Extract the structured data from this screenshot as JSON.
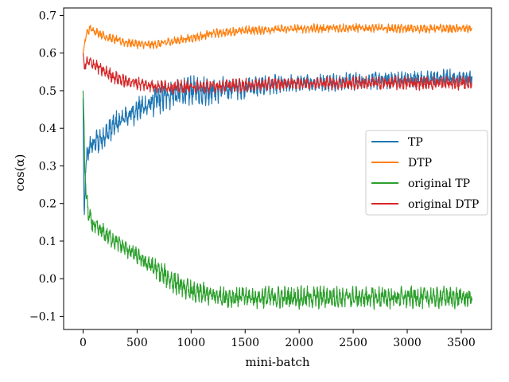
{
  "chart_data": {
    "type": "line",
    "title": "",
    "xlabel": "mini-batch",
    "ylabel": "cos(α)",
    "xlim": [
      -180,
      3780
    ],
    "ylim": [
      -0.135,
      0.72
    ],
    "x_ticks": [
      0,
      500,
      1000,
      1500,
      2000,
      2500,
      3000,
      3500
    ],
    "x_tick_labels": [
      "0",
      "500",
      "1000",
      "1500",
      "2000",
      "2500",
      "3000",
      "3500"
    ],
    "y_ticks": [
      -0.1,
      0.0,
      0.1,
      0.2,
      0.3,
      0.4,
      0.5,
      0.6,
      0.7
    ],
    "y_tick_labels": [
      "−0.1",
      "0.0",
      "0.1",
      "0.2",
      "0.3",
      "0.4",
      "0.5",
      "0.6",
      "0.7"
    ],
    "grid": false,
    "legend_position": "center-right",
    "series": [
      {
        "name": "TP",
        "color": "#1f77b4",
        "x": [
          0,
          10,
          20,
          40,
          60,
          100,
          150,
          200,
          300,
          400,
          500,
          600,
          700,
          800,
          1000,
          1200,
          1500,
          2000,
          2500,
          3000,
          3600
        ],
        "y": [
          0.48,
          0.12,
          0.28,
          0.33,
          0.35,
          0.36,
          0.37,
          0.38,
          0.41,
          0.43,
          0.45,
          0.46,
          0.48,
          0.49,
          0.5,
          0.5,
          0.51,
          0.52,
          0.525,
          0.53,
          0.535
        ],
        "noise": [
          0,
          0.03,
          0.03,
          0.03,
          0.03,
          0.03,
          0.03,
          0.03,
          0.03,
          0.03,
          0.03,
          0.03,
          0.035,
          0.035,
          0.035,
          0.03,
          0.025,
          0.02,
          0.02,
          0.02,
          0.02
        ]
      },
      {
        "name": "DTP",
        "color": "#ff7f0e",
        "x": [
          0,
          10,
          20,
          40,
          60,
          100,
          200,
          300,
          400,
          500,
          600,
          700,
          800,
          1000,
          1200,
          1500,
          2000,
          2500,
          3000,
          3600
        ],
        "y": [
          0.6,
          0.61,
          0.64,
          0.655,
          0.665,
          0.66,
          0.645,
          0.635,
          0.628,
          0.624,
          0.622,
          0.624,
          0.63,
          0.64,
          0.652,
          0.66,
          0.665,
          0.667,
          0.665,
          0.665
        ],
        "noise": [
          0,
          0.01,
          0.01,
          0.01,
          0.01,
          0.01,
          0.01,
          0.01,
          0.01,
          0.01,
          0.01,
          0.01,
          0.01,
          0.01,
          0.01,
          0.01,
          0.01,
          0.01,
          0.01,
          0.01
        ]
      },
      {
        "name": "original TP",
        "color": "#2ca02c",
        "x": [
          0,
          5,
          15,
          30,
          50,
          80,
          100,
          200,
          300,
          400,
          500,
          600,
          700,
          800,
          900,
          1000,
          1200,
          1500,
          2000,
          2500,
          3000,
          3600
        ],
        "y": [
          0.5,
          0.45,
          0.3,
          0.22,
          0.17,
          0.15,
          0.14,
          0.12,
          0.1,
          0.08,
          0.06,
          0.04,
          0.02,
          0.0,
          -0.02,
          -0.035,
          -0.045,
          -0.05,
          -0.05,
          -0.05,
          -0.05,
          -0.05
        ],
        "noise": [
          0,
          0.02,
          0.02,
          0.02,
          0.02,
          0.02,
          0.02,
          0.02,
          0.02,
          0.02,
          0.02,
          0.025,
          0.025,
          0.025,
          0.025,
          0.025,
          0.025,
          0.025,
          0.025,
          0.025,
          0.025,
          0.025
        ]
      },
      {
        "name": "original DTP",
        "color": "#d62728",
        "x": [
          0,
          10,
          20,
          40,
          60,
          100,
          200,
          300,
          400,
          500,
          600,
          800,
          1000,
          1500,
          2000,
          2500,
          3000,
          3600
        ],
        "y": [
          0.6,
          0.56,
          0.57,
          0.575,
          0.575,
          0.57,
          0.55,
          0.535,
          0.525,
          0.52,
          0.515,
          0.51,
          0.51,
          0.515,
          0.52,
          0.52,
          0.52,
          0.52
        ],
        "noise": [
          0,
          0.015,
          0.015,
          0.015,
          0.015,
          0.015,
          0.015,
          0.015,
          0.015,
          0.015,
          0.015,
          0.015,
          0.015,
          0.015,
          0.015,
          0.015,
          0.015,
          0.015
        ]
      }
    ]
  }
}
